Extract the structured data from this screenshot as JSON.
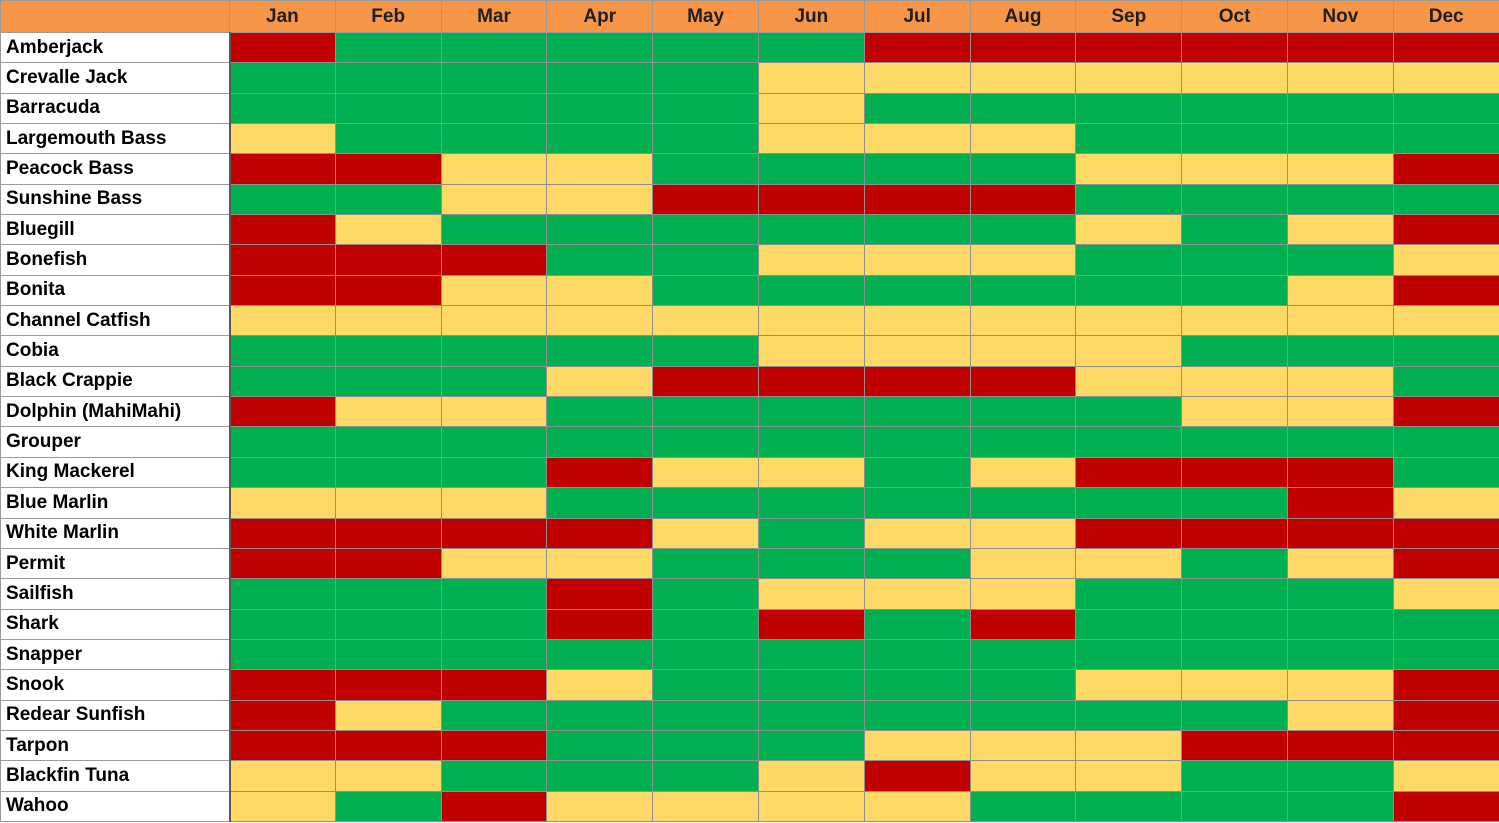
{
  "colors": {
    "header_bg": "#f79646",
    "label_bg": "#ffffff",
    "G": "#00b050",
    "Y": "#ffd966",
    "R": "#c00000"
  },
  "chart_data": {
    "type": "heatmap",
    "x": [
      "Jan",
      "Feb",
      "Mar",
      "Apr",
      "May",
      "Jun",
      "Jul",
      "Aug",
      "Sep",
      "Oct",
      "Nov",
      "Dec"
    ],
    "y": [
      "Amberjack",
      "Crevalle Jack",
      "Barracuda",
      "Largemouth Bass",
      "Peacock Bass",
      "Sunshine Bass",
      "Bluegill",
      "Bonefish",
      "Bonita",
      "Channel Catfish",
      "Cobia",
      "Black Crappie",
      "Dolphin (MahiMahi)",
      "Grouper",
      "King Mackerel",
      "Blue Marlin",
      "White Marlin",
      "Permit",
      "Sailfish",
      "Shark",
      "Snapper",
      "Snook",
      "Redear Sunfish",
      "Tarpon",
      "Blackfin Tuna",
      "Wahoo"
    ],
    "levels": {
      "G": "green",
      "Y": "yellow",
      "R": "red"
    },
    "values": [
      [
        "R",
        "G",
        "G",
        "G",
        "G",
        "G",
        "R",
        "R",
        "R",
        "R",
        "R",
        "R"
      ],
      [
        "G",
        "G",
        "G",
        "G",
        "G",
        "Y",
        "Y",
        "Y",
        "Y",
        "Y",
        "Y",
        "Y"
      ],
      [
        "G",
        "G",
        "G",
        "G",
        "G",
        "Y",
        "G",
        "G",
        "G",
        "G",
        "G",
        "G"
      ],
      [
        "Y",
        "G",
        "G",
        "G",
        "G",
        "Y",
        "Y",
        "Y",
        "G",
        "G",
        "G",
        "G"
      ],
      [
        "R",
        "R",
        "Y",
        "Y",
        "G",
        "G",
        "G",
        "G",
        "Y",
        "Y",
        "Y",
        "R"
      ],
      [
        "G",
        "G",
        "Y",
        "Y",
        "R",
        "R",
        "R",
        "R",
        "G",
        "G",
        "G",
        "G"
      ],
      [
        "R",
        "Y",
        "G",
        "G",
        "G",
        "G",
        "G",
        "G",
        "Y",
        "G",
        "Y",
        "R"
      ],
      [
        "R",
        "R",
        "R",
        "G",
        "G",
        "Y",
        "Y",
        "Y",
        "G",
        "G",
        "G",
        "Y"
      ],
      [
        "R",
        "R",
        "Y",
        "Y",
        "G",
        "G",
        "G",
        "G",
        "G",
        "G",
        "Y",
        "R"
      ],
      [
        "Y",
        "Y",
        "Y",
        "Y",
        "Y",
        "Y",
        "Y",
        "Y",
        "Y",
        "Y",
        "Y",
        "Y"
      ],
      [
        "G",
        "G",
        "G",
        "G",
        "G",
        "Y",
        "Y",
        "Y",
        "Y",
        "G",
        "G",
        "G"
      ],
      [
        "G",
        "G",
        "G",
        "Y",
        "R",
        "R",
        "R",
        "R",
        "Y",
        "Y",
        "Y",
        "G"
      ],
      [
        "R",
        "Y",
        "Y",
        "G",
        "G",
        "G",
        "G",
        "G",
        "G",
        "Y",
        "Y",
        "R"
      ],
      [
        "G",
        "G",
        "G",
        "G",
        "G",
        "G",
        "G",
        "G",
        "G",
        "G",
        "G",
        "G"
      ],
      [
        "G",
        "G",
        "G",
        "R",
        "Y",
        "Y",
        "G",
        "Y",
        "R",
        "R",
        "R",
        "G"
      ],
      [
        "Y",
        "Y",
        "Y",
        "G",
        "G",
        "G",
        "G",
        "G",
        "G",
        "G",
        "R",
        "Y"
      ],
      [
        "R",
        "R",
        "R",
        "R",
        "Y",
        "G",
        "Y",
        "Y",
        "R",
        "R",
        "R",
        "R"
      ],
      [
        "R",
        "R",
        "Y",
        "Y",
        "G",
        "G",
        "G",
        "Y",
        "Y",
        "G",
        "Y",
        "R"
      ],
      [
        "G",
        "G",
        "G",
        "R",
        "G",
        "Y",
        "Y",
        "Y",
        "G",
        "G",
        "G",
        "Y"
      ],
      [
        "G",
        "G",
        "G",
        "R",
        "G",
        "R",
        "G",
        "R",
        "G",
        "G",
        "G",
        "G"
      ],
      [
        "G",
        "G",
        "G",
        "G",
        "G",
        "G",
        "G",
        "G",
        "G",
        "G",
        "G",
        "G"
      ],
      [
        "R",
        "R",
        "R",
        "Y",
        "G",
        "G",
        "G",
        "G",
        "Y",
        "Y",
        "Y",
        "R"
      ],
      [
        "R",
        "Y",
        "G",
        "G",
        "G",
        "G",
        "G",
        "G",
        "G",
        "G",
        "Y",
        "R"
      ],
      [
        "R",
        "R",
        "R",
        "G",
        "G",
        "G",
        "Y",
        "Y",
        "Y",
        "R",
        "R",
        "R"
      ],
      [
        "Y",
        "Y",
        "G",
        "G",
        "G",
        "Y",
        "R",
        "Y",
        "Y",
        "G",
        "G",
        "Y"
      ],
      [
        "Y",
        "G",
        "R",
        "Y",
        "Y",
        "Y",
        "Y",
        "G",
        "G",
        "G",
        "G",
        "R"
      ]
    ]
  }
}
